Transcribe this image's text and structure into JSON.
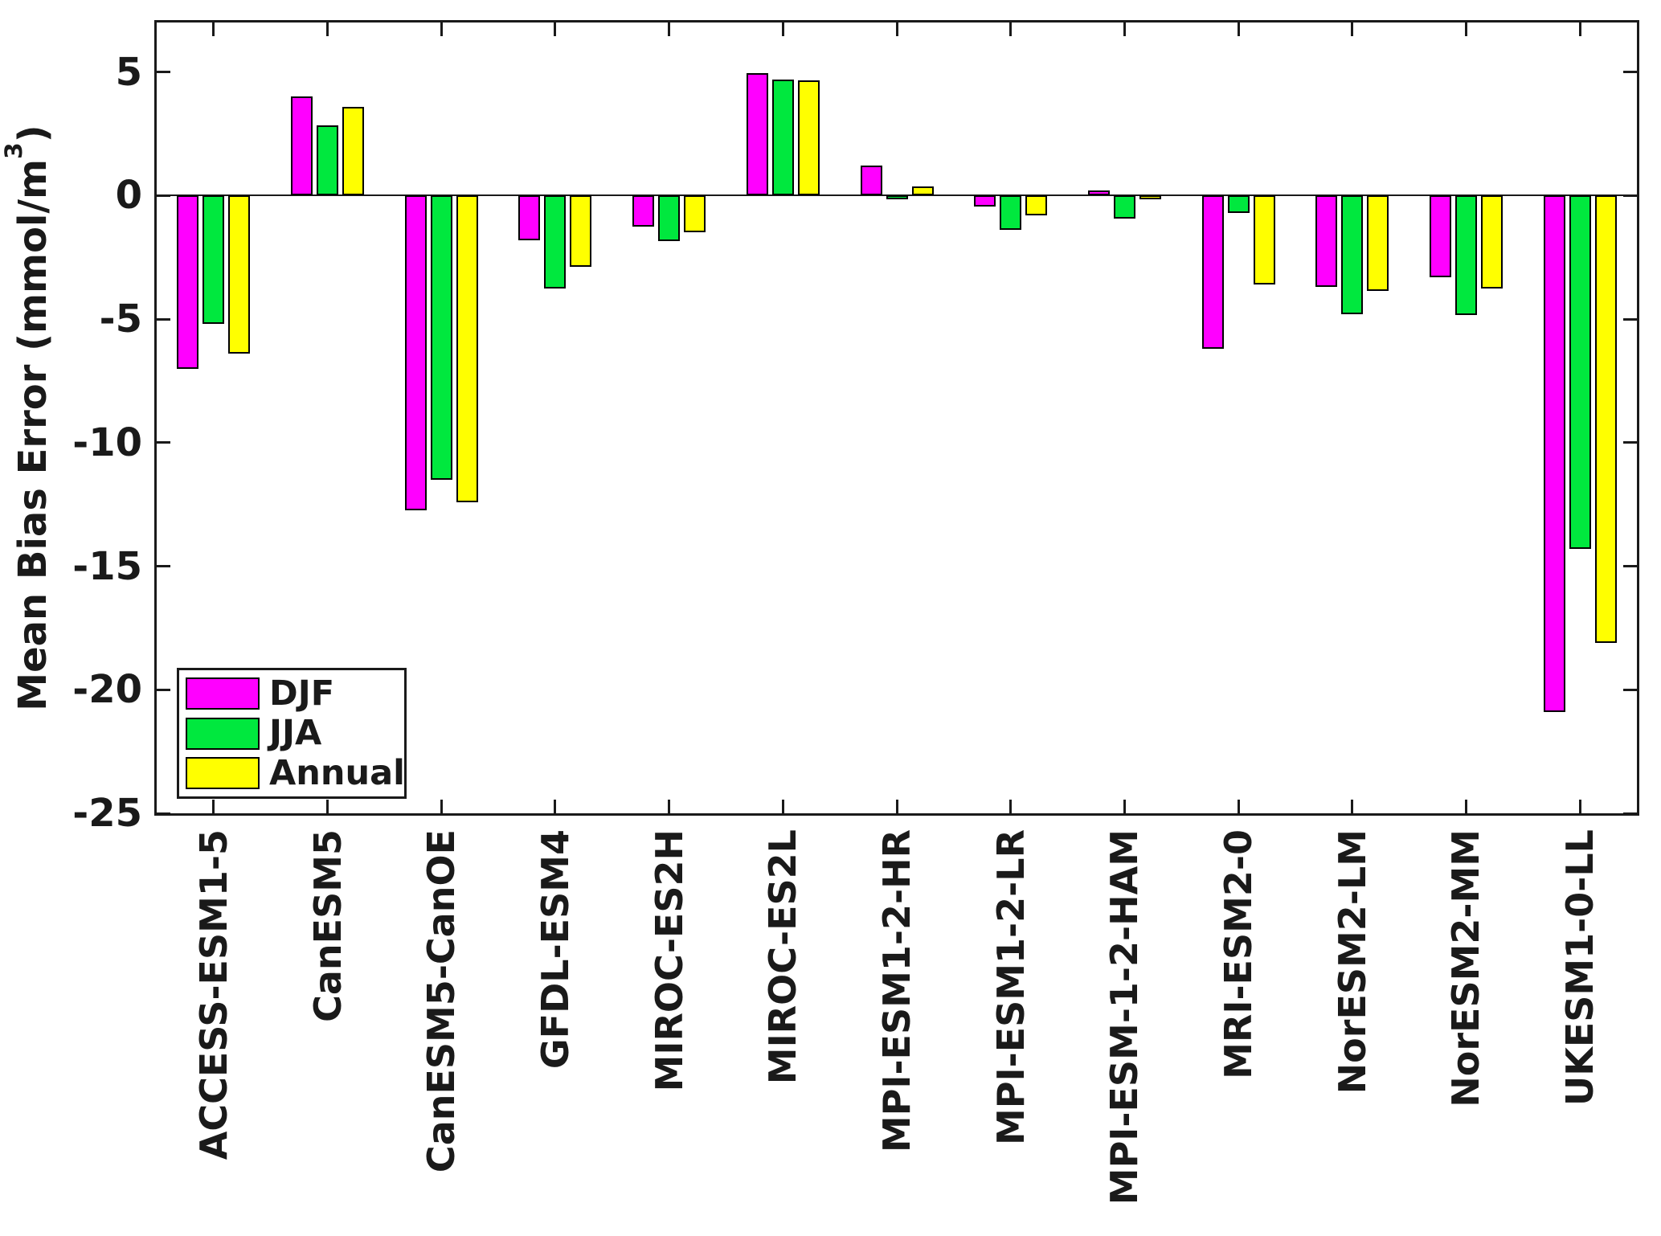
{
  "figure": {
    "background": "#ffffff",
    "axis_color": "#1a1a1a"
  },
  "y_axis": {
    "label_prefix": "Mean Bias Error (mmol/m",
    "label_sup": "3",
    "label_suffix": ")",
    "tick_values": [
      5,
      0,
      -5,
      -10,
      -15,
      -20,
      -25
    ],
    "tick_labels": [
      "5",
      "0",
      "-5",
      "-10",
      "-15",
      "-20",
      "-25"
    ]
  },
  "legend": {
    "entries": [
      {
        "label": "DJF",
        "color": "#ff00ff"
      },
      {
        "label": "JJA",
        "color": "#00e83e"
      },
      {
        "label": "Annual",
        "color": "#ffff00"
      }
    ]
  },
  "chart_data": {
    "type": "bar",
    "title": "",
    "xlabel": "",
    "ylabel": "Mean Bias Error (mmol/m^3)",
    "categories": [
      "ACCESS-ESM1-5",
      "CanESM5",
      "CanESM5-CanOE",
      "GFDL-ESM4",
      "MIROC-ES2H",
      "MIROC-ES2L",
      "MPI-ESM1-2-HR",
      "MPI-ESM1-2-LR",
      "MPI-ESM-1-2-HAM",
      "MRI-ESM2-0",
      "NorESM2-LM",
      "NorESM2-MM",
      "UKESM1-0-LL"
    ],
    "series": [
      {
        "name": "DJF",
        "color": "#ff00ff",
        "values": [
          -7.0,
          4.0,
          -12.75,
          -1.8,
          -1.25,
          4.95,
          1.2,
          -0.45,
          0.2,
          -6.2,
          -3.7,
          -3.3,
          -20.9
        ]
      },
      {
        "name": "JJA",
        "color": "#00e83e",
        "values": [
          -5.2,
          2.85,
          -11.5,
          -3.75,
          -1.85,
          4.7,
          -0.15,
          -1.4,
          -0.95,
          -0.7,
          -4.8,
          -4.85,
          -14.3
        ]
      },
      {
        "name": "Annual",
        "color": "#ffff00",
        "values": [
          -6.4,
          3.6,
          -12.4,
          -2.9,
          -1.5,
          4.65,
          0.35,
          -0.8,
          -0.15,
          -3.6,
          -3.85,
          -3.75,
          -18.1
        ]
      }
    ],
    "ylim": [
      -25,
      7
    ],
    "yticks": [
      5,
      0,
      -5,
      -10,
      -15,
      -20,
      -25
    ],
    "grid": false,
    "bar_edge_color": "#000000",
    "legend_position": "lower-left"
  }
}
